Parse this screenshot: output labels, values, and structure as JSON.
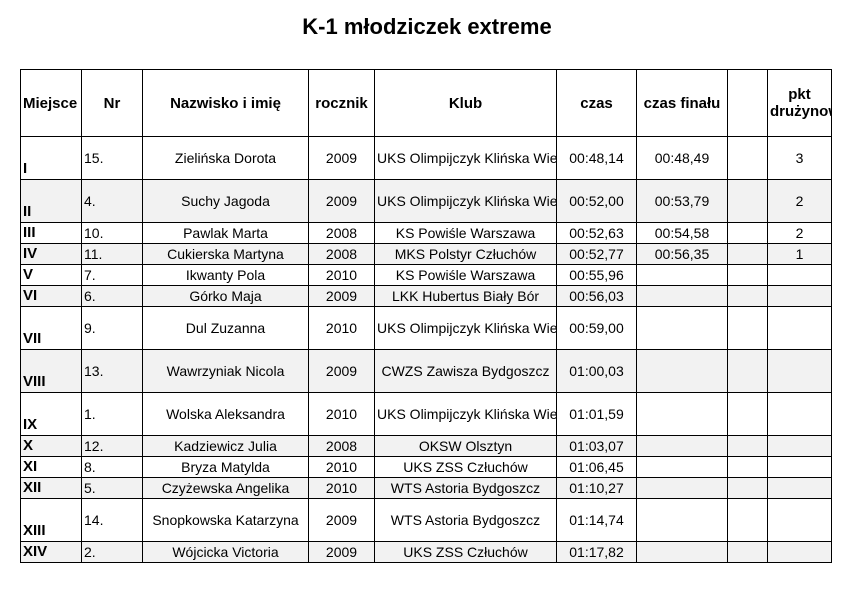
{
  "title": "K-1 młodziczek extreme",
  "columns": [
    "Miejsce",
    "Nr",
    "Nazwisko i imię",
    "rocznik",
    "Klub",
    "czas",
    "czas finału",
    "",
    "pkt drużynowa"
  ],
  "rows": [
    {
      "place": "I",
      "nr": "15.",
      "name": "Zielińska Dorota",
      "year": "2009",
      "club": "UKS Olimpijczyk Klińska Wielka",
      "time": "00:48,14",
      "final": "00:48,49",
      "pts": "3"
    },
    {
      "place": "II",
      "nr": "4.",
      "name": "Suchy Jagoda",
      "year": "2009",
      "club": "UKS Olimpijczyk Klińska Wielka",
      "time": "00:52,00",
      "final": "00:53,79",
      "pts": "2"
    },
    {
      "place": "III",
      "nr": "10.",
      "name": "Pawlak Marta",
      "year": "2008",
      "club": "KS Powiśle Warszawa",
      "time": "00:52,63",
      "final": "00:54,58",
      "pts": "2"
    },
    {
      "place": "IV",
      "nr": "11.",
      "name": "Cukierska Martyna",
      "year": "2008",
      "club": "MKS Polstyr Człuchów",
      "time": "00:52,77",
      "final": "00:56,35",
      "pts": "1"
    },
    {
      "place": "V",
      "nr": "7.",
      "name": "Ikwanty Pola",
      "year": "2010",
      "club": "KS Powiśle Warszawa",
      "time": "00:55,96",
      "final": "",
      "pts": ""
    },
    {
      "place": "VI",
      "nr": "6.",
      "name": "Górko Maja",
      "year": "2009",
      "club": "LKK Hubertus Biały Bór",
      "time": "00:56,03",
      "final": "",
      "pts": ""
    },
    {
      "place": "VII",
      "nr": "9.",
      "name": "Dul Zuzanna",
      "year": "2010",
      "club": "UKS Olimpijczyk Klińska Wielka",
      "time": "00:59,00",
      "final": "",
      "pts": ""
    },
    {
      "place": "VIII",
      "nr": "13.",
      "name": "Wawrzyniak Nicola",
      "year": "2009",
      "club": "CWZS Zawisza Bydgoszcz",
      "time": "01:00,03",
      "final": "",
      "pts": ""
    },
    {
      "place": "IX",
      "nr": "1.",
      "name": "Wolska Aleksandra",
      "year": "2010",
      "club": "UKS Olimpijczyk Klińska Wielka",
      "time": "01:01,59",
      "final": "",
      "pts": ""
    },
    {
      "place": "X",
      "nr": "12.",
      "name": "Kadziewicz Julia",
      "year": "2008",
      "club": "OKSW Olsztyn",
      "time": "01:03,07",
      "final": "",
      "pts": ""
    },
    {
      "place": "XI",
      "nr": "8.",
      "name": "Bryza Matylda",
      "year": "2010",
      "club": "UKS ZSS Człuchów",
      "time": "01:06,45",
      "final": "",
      "pts": ""
    },
    {
      "place": "XII",
      "nr": "5.",
      "name": "Czyżewska Angelika",
      "year": "2010",
      "club": "WTS Astoria Bydgoszcz",
      "time": "01:10,27",
      "final": "",
      "pts": ""
    },
    {
      "place": "XIII",
      "nr": "14.",
      "name": "Snopkowska Katarzyna",
      "year": "2009",
      "club": "WTS Astoria Bydgoszcz",
      "time": "01:14,74",
      "final": "",
      "pts": ""
    },
    {
      "place": "XIV",
      "nr": "2.",
      "name": "Wójcicka Victoria",
      "year": "2009",
      "club": "UKS ZSS Człuchów",
      "time": "01:17,82",
      "final": "",
      "pts": ""
    }
  ]
}
